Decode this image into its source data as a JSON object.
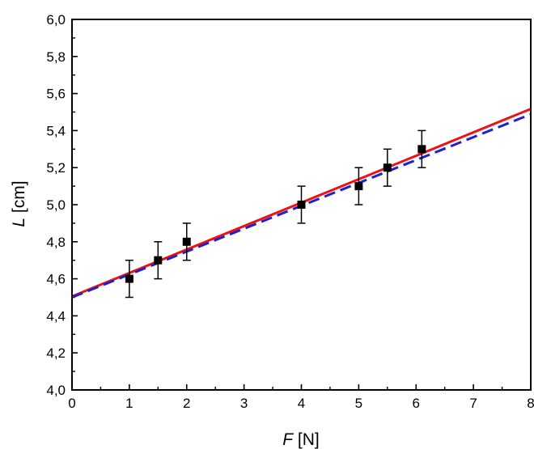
{
  "chart_data": {
    "type": "scatter",
    "xlabel": {
      "symbol": "F",
      "unit": "[N]"
    },
    "ylabel": {
      "symbol": "L",
      "unit": "[cm]"
    },
    "xlim": [
      0,
      8
    ],
    "ylim": [
      4.0,
      6.0
    ],
    "x_ticks": [
      "0",
      "1",
      "2",
      "3",
      "4",
      "5",
      "6",
      "7",
      "8"
    ],
    "y_ticks": [
      "4,0",
      "4,2",
      "4,4",
      "4,6",
      "4,8",
      "5,0",
      "5,2",
      "5,4",
      "5,6",
      "5,8",
      "6,0"
    ],
    "grid": false,
    "points": [
      {
        "x": 1.0,
        "y": 4.6,
        "err": 0.1
      },
      {
        "x": 1.5,
        "y": 4.7,
        "err": 0.1
      },
      {
        "x": 2.0,
        "y": 4.8,
        "err": 0.1
      },
      {
        "x": 4.0,
        "y": 5.0,
        "err": 0.1
      },
      {
        "x": 5.0,
        "y": 5.1,
        "err": 0.1
      },
      {
        "x": 5.5,
        "y": 5.2,
        "err": 0.1
      },
      {
        "x": 6.1,
        "y": 5.3,
        "err": 0.1
      }
    ],
    "lines": [
      {
        "style": "solid",
        "color": "#ee1111",
        "intercept": 4.505,
        "slope": 0.1265
      },
      {
        "style": "dashed",
        "color": "#1f1fd0",
        "intercept": 4.5,
        "slope": 0.1235
      }
    ],
    "marker_color": "#000000"
  }
}
